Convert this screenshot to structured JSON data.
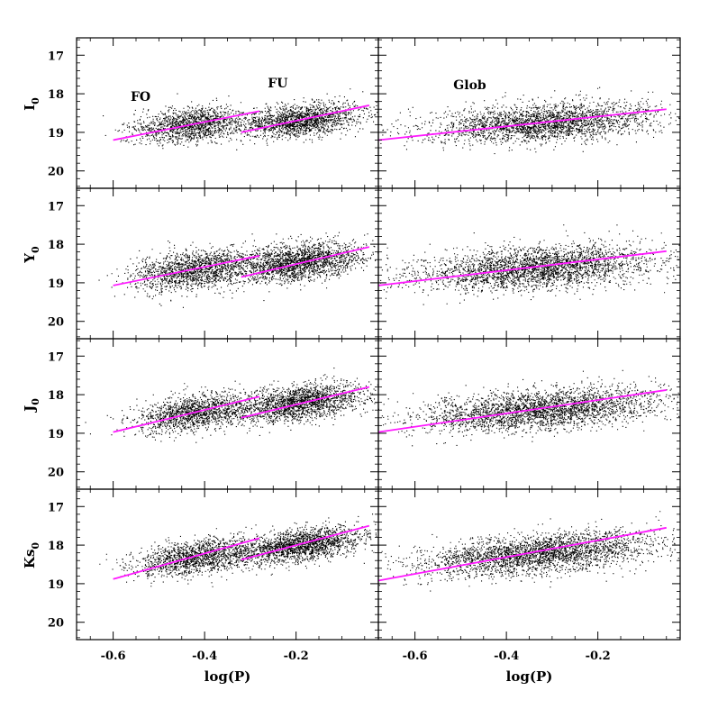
{
  "chart_data": {
    "type": "scatter",
    "layout": "4 rows x 2 columns of panels sharing axes",
    "xlabel": "log(P)",
    "ylabels": [
      {
        "main": "I",
        "sub": "0"
      },
      {
        "main": "Y",
        "sub": "0"
      },
      {
        "main": "J",
        "sub": "0"
      },
      {
        "main": "Ks",
        "sub": "0"
      }
    ],
    "xlim": [
      -0.68,
      -0.02
    ],
    "ylim": [
      20.45,
      16.55
    ],
    "y_inverted": true,
    "x_ticks": [
      -0.6,
      -0.4,
      -0.2
    ],
    "x_tick_labels": [
      "-0.6",
      "-0.4",
      "-0.2"
    ],
    "y_ticks": [
      17,
      18,
      19,
      20
    ],
    "y_tick_labels": [
      "17",
      "18",
      "19",
      "20"
    ],
    "annotations": [
      {
        "text": "FO",
        "panel": [
          0,
          0
        ],
        "x": -0.54,
        "y": 18.18
      },
      {
        "text": "FU",
        "panel": [
          0,
          0
        ],
        "x": -0.24,
        "y": 17.83
      },
      {
        "text": "Glob",
        "panel": [
          0,
          1
        ],
        "x": -0.48,
        "y": 17.88
      }
    ],
    "point_color": "#000000",
    "fit_color": "#ff1aff",
    "grid": false,
    "panels": [
      {
        "row": 0,
        "col": 0,
        "band": "I0",
        "fits": [
          {
            "name": "FO",
            "x": [
              -0.6,
              -0.28
            ],
            "y": [
              19.2,
              18.45
            ]
          },
          {
            "name": "FU",
            "x": [
              -0.32,
              -0.04
            ],
            "y": [
              19.0,
              18.3
            ]
          }
        ],
        "clouds": [
          {
            "xc": -0.43,
            "yc": 18.8,
            "sx": 0.06,
            "sy": 0.22,
            "slope": -2.3,
            "n": 1400
          },
          {
            "xc": -0.19,
            "yc": 18.68,
            "sx": 0.065,
            "sy": 0.2,
            "slope": -2.5,
            "n": 1700
          }
        ]
      },
      {
        "row": 0,
        "col": 1,
        "band": "I0",
        "fits": [
          {
            "name": "Glob",
            "x": [
              -0.68,
              -0.05
            ],
            "y": [
              19.2,
              18.4
            ]
          }
        ],
        "clouds": [
          {
            "xc": -0.32,
            "yc": 18.75,
            "sx": 0.12,
            "sy": 0.24,
            "slope": -1.3,
            "n": 2600
          }
        ]
      },
      {
        "row": 1,
        "col": 0,
        "band": "Y0",
        "fits": [
          {
            "name": "FO",
            "x": [
              -0.6,
              -0.28
            ],
            "y": [
              19.07,
              18.3
            ]
          },
          {
            "name": "FU",
            "x": [
              -0.32,
              -0.04
            ],
            "y": [
              18.85,
              18.07
            ]
          }
        ],
        "clouds": [
          {
            "xc": -0.42,
            "yc": 18.65,
            "sx": 0.065,
            "sy": 0.25,
            "slope": -2.4,
            "n": 1600
          },
          {
            "xc": -0.19,
            "yc": 18.45,
            "sx": 0.07,
            "sy": 0.23,
            "slope": -2.7,
            "n": 2000
          }
        ]
      },
      {
        "row": 1,
        "col": 1,
        "band": "Y0",
        "fits": [
          {
            "name": "Glob",
            "x": [
              -0.68,
              -0.05
            ],
            "y": [
              19.07,
              18.18
            ]
          }
        ],
        "clouds": [
          {
            "xc": -0.33,
            "yc": 18.6,
            "sx": 0.13,
            "sy": 0.27,
            "slope": -1.4,
            "n": 3000
          }
        ]
      },
      {
        "row": 2,
        "col": 0,
        "band": "J0",
        "fits": [
          {
            "name": "FO",
            "x": [
              -0.6,
              -0.28
            ],
            "y": [
              18.97,
              18.05
            ]
          },
          {
            "name": "FU",
            "x": [
              -0.32,
              -0.04
            ],
            "y": [
              18.6,
              17.8
            ]
          }
        ],
        "clouds": [
          {
            "xc": -0.42,
            "yc": 18.45,
            "sx": 0.065,
            "sy": 0.23,
            "slope": -2.8,
            "n": 1500
          },
          {
            "xc": -0.19,
            "yc": 18.2,
            "sx": 0.07,
            "sy": 0.22,
            "slope": -2.9,
            "n": 1900
          }
        ]
      },
      {
        "row": 2,
        "col": 1,
        "band": "J0",
        "fits": [
          {
            "name": "Glob",
            "x": [
              -0.68,
              -0.05
            ],
            "y": [
              18.97,
              17.88
            ]
          }
        ],
        "clouds": [
          {
            "xc": -0.33,
            "yc": 18.38,
            "sx": 0.13,
            "sy": 0.26,
            "slope": -1.7,
            "n": 2900
          }
        ]
      },
      {
        "row": 3,
        "col": 0,
        "band": "Ks0",
        "fits": [
          {
            "name": "FO",
            "x": [
              -0.6,
              -0.28
            ],
            "y": [
              18.88,
              17.82
            ]
          },
          {
            "name": "FU",
            "x": [
              -0.32,
              -0.04
            ],
            "y": [
              18.38,
              17.5
            ]
          }
        ],
        "clouds": [
          {
            "xc": -0.42,
            "yc": 18.3,
            "sx": 0.065,
            "sy": 0.22,
            "slope": -3.2,
            "n": 1500
          },
          {
            "xc": -0.19,
            "yc": 18.0,
            "sx": 0.07,
            "sy": 0.2,
            "slope": -3.1,
            "n": 1900
          }
        ]
      },
      {
        "row": 3,
        "col": 1,
        "band": "Ks0",
        "fits": [
          {
            "name": "Glob",
            "x": [
              -0.68,
              -0.05
            ],
            "y": [
              18.92,
              17.55
            ]
          }
        ],
        "clouds": [
          {
            "xc": -0.33,
            "yc": 18.2,
            "sx": 0.13,
            "sy": 0.25,
            "slope": -2.1,
            "n": 2900
          }
        ]
      }
    ]
  }
}
